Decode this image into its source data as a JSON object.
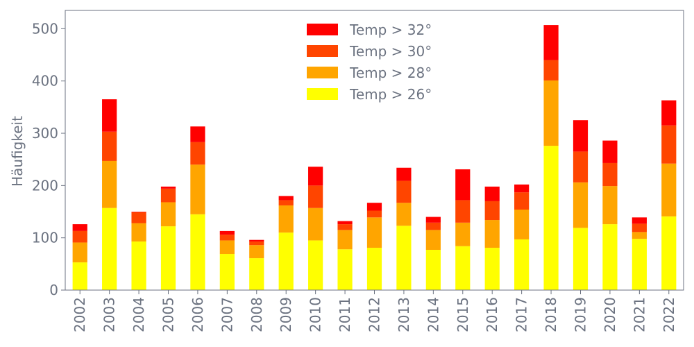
{
  "chart_data": {
    "type": "bar",
    "stacked": true,
    "title": "",
    "xlabel": "",
    "ylabel": "Häufigkeit",
    "ylim": [
      0,
      535
    ],
    "yticks": [
      0,
      100,
      200,
      300,
      400,
      500
    ],
    "grid": false,
    "legend_position": "top-center",
    "categories": [
      "2002",
      "2003",
      "2004",
      "2005",
      "2006",
      "2007",
      "2008",
      "2009",
      "2010",
      "2011",
      "2012",
      "2013",
      "2014",
      "2015",
      "2016",
      "2017",
      "2018",
      "2019",
      "2020",
      "2021",
      "2022"
    ],
    "series": [
      {
        "name": "Temp > 26°",
        "color": "#ffff00",
        "values": [
          53,
          157,
          93,
          122,
          145,
          69,
          61,
          110,
          95,
          78,
          81,
          123,
          77,
          84,
          81,
          97,
          276,
          119,
          126,
          98,
          141
        ]
      },
      {
        "name": "Temp > 28°",
        "color": "#ffa500",
        "values": [
          38,
          90,
          35,
          46,
          95,
          26,
          25,
          52,
          62,
          37,
          58,
          44,
          38,
          45,
          53,
          57,
          125,
          87,
          73,
          13,
          101
        ]
      },
      {
        "name": "Temp > 30°",
        "color": "#ff4500",
        "values": [
          22,
          56,
          21,
          26,
          43,
          11,
          7,
          10,
          43,
          11,
          13,
          42,
          14,
          43,
          36,
          33,
          39,
          59,
          44,
          16,
          73
        ]
      },
      {
        "name": "Temp > 32°",
        "color": "#ff0000",
        "values": [
          13,
          62,
          1,
          4,
          30,
          7,
          3,
          8,
          36,
          6,
          15,
          25,
          11,
          59,
          28,
          15,
          67,
          60,
          43,
          12,
          48
        ]
      }
    ],
    "legend_order": [
      "Temp > 32°",
      "Temp > 30°",
      "Temp > 28°",
      "Temp > 26°"
    ]
  }
}
